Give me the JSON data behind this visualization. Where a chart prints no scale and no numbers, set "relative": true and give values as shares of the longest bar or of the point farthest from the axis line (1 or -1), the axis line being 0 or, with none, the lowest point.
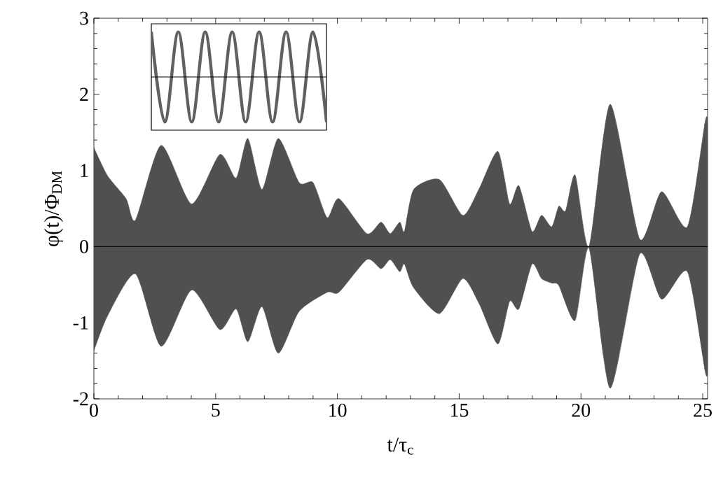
{
  "chart_data": [
    {
      "type": "area",
      "xlabel": "t/τ$_{c}$",
      "ylabel": "φ(t)/Φ$_{DM}$",
      "xlim": [
        0,
        25.2
      ],
      "ylim": [
        -2,
        3
      ],
      "xticks": [
        0,
        5,
        10,
        15,
        20,
        25
      ],
      "yticks": [
        -2,
        -1,
        0,
        1,
        2,
        3
      ],
      "grid": false,
      "ref_lines": [
        {
          "axis": "y",
          "value": 0,
          "color": "#000000"
        }
      ],
      "series": [
        {
          "color": "#505050",
          "x": [
            0,
            0.56,
            1.32,
            1.71,
            2.76,
            4.01,
            5.17,
            5.84,
            6.32,
            6.9,
            7.57,
            8.43,
            9.0,
            9.58,
            10.06,
            11.21,
            11.79,
            12.17,
            12.56,
            12.75,
            13.13,
            14.19,
            15.15,
            15.82,
            16.59,
            17.07,
            17.45,
            17.99,
            18.38,
            18.8,
            19.09,
            19.37,
            19.76,
            20.33,
            21.2,
            22.41,
            23.31,
            24.37,
            25.1,
            25.2
          ],
          "values": [
            1.3,
            0.93,
            0.63,
            0.35,
            1.33,
            0.56,
            1.21,
            0.9,
            1.42,
            0.75,
            1.42,
            0.84,
            0.84,
            0.38,
            0.63,
            0.17,
            0.32,
            0.17,
            0.32,
            0.2,
            0.75,
            0.88,
            0.41,
            0.76,
            1.25,
            0.56,
            0.8,
            0.2,
            0.41,
            0.26,
            0.53,
            0.47,
            0.94,
            0.0,
            1.87,
            0.1,
            0.72,
            0.26,
            1.64,
            1.64
          ]
        },
        {
          "color": "#505050",
          "x": [
            0,
            0.56,
            1.71,
            2.76,
            4.01,
            5.17,
            5.84,
            6.32,
            6.9,
            7.57,
            8.43,
            9.58,
            10.06,
            11.21,
            11.79,
            12.17,
            12.56,
            12.75,
            13.13,
            14.19,
            15.15,
            15.82,
            16.59,
            17.07,
            17.45,
            17.99,
            18.38,
            18.8,
            19.09,
            19.76,
            20.33,
            21.2,
            22.41,
            23.31,
            24.37,
            25.1,
            25.2
          ],
          "values": [
            -1.37,
            -0.91,
            -0.36,
            -1.31,
            -0.57,
            -1.09,
            -0.82,
            -1.25,
            -0.79,
            -1.4,
            -0.85,
            -0.6,
            -0.6,
            -0.17,
            -0.29,
            -0.17,
            -0.33,
            -0.23,
            -0.54,
            -0.88,
            -0.42,
            -0.75,
            -1.28,
            -0.72,
            -0.82,
            -0.23,
            -0.42,
            -0.48,
            -0.51,
            -0.97,
            -0.02,
            -1.86,
            -0.1,
            -0.69,
            -0.33,
            -1.64,
            -1.64
          ]
        }
      ]
    },
    {
      "type": "line",
      "relative": true,
      "color": "#606060",
      "categories": [
        null,
        null,
        null,
        null,
        null,
        null,
        null,
        null,
        null,
        null,
        null,
        null,
        null,
        null
      ],
      "values": [
        1,
        -1,
        1,
        -1,
        1,
        -1,
        1,
        -1,
        1,
        -1,
        1,
        -1,
        1,
        -1
      ],
      "ref_lines": [
        {
          "axis": "y",
          "value": 0,
          "color": "#000000"
        }
      ]
    }
  ]
}
